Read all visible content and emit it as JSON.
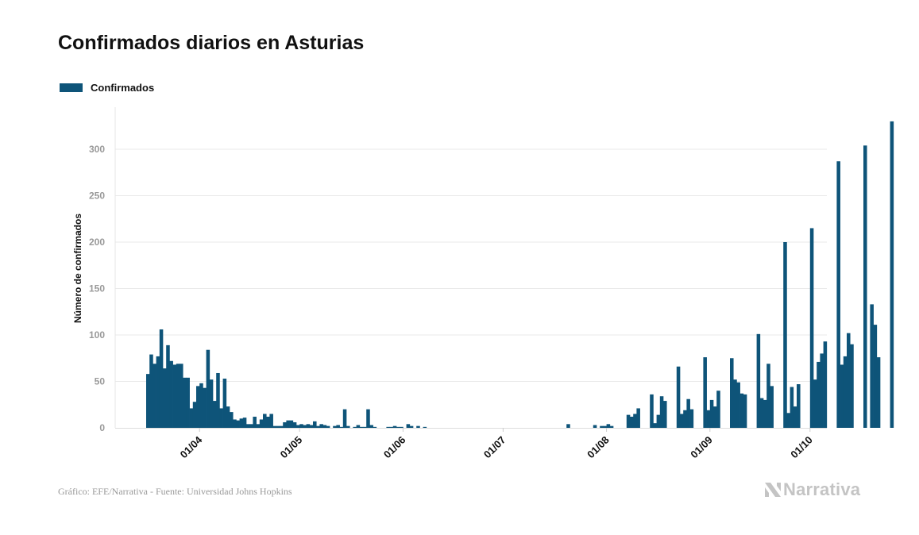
{
  "title": "Confirmados diarios en Asturias",
  "legend": {
    "label": "Confirmados",
    "color": "#0e5479"
  },
  "footer": {
    "source": "Gráfico: EFE/Narrativa - Fuente: Universidad Johns Hopkins"
  },
  "brand": {
    "name": "Narrativa",
    "icon": "narrativa-logo-icon"
  },
  "chart_data": {
    "type": "bar",
    "title": "Confirmados diarios en Asturias",
    "xlabel": "",
    "ylabel": "Número de confirmados",
    "ylim": [
      0,
      345
    ],
    "yticks": [
      0,
      50,
      100,
      150,
      200,
      250,
      300
    ],
    "grid": true,
    "legend_position": "top-left",
    "color": "#0e5479",
    "start_date": "2020-03-16",
    "xtick_labels": [
      "01/04",
      "01/05",
      "01/06",
      "01/07",
      "01/08",
      "01/09",
      "01/10"
    ],
    "xtick_day_index": [
      16,
      46,
      77,
      107,
      138,
      169,
      199
    ],
    "series": [
      {
        "name": "Confirmados",
        "values": [
          58,
          79,
          69,
          77,
          106,
          64,
          89,
          72,
          68,
          69,
          69,
          54,
          54,
          21,
          28,
          45,
          48,
          43,
          84,
          52,
          29,
          59,
          21,
          53,
          23,
          17,
          9,
          8,
          10,
          11,
          4,
          4,
          12,
          4,
          9,
          15,
          12,
          15,
          2,
          2,
          2,
          6,
          8,
          8,
          6,
          3,
          4,
          3,
          4,
          3,
          7,
          2,
          4,
          3,
          2,
          0,
          2,
          3,
          1,
          20,
          2,
          0,
          1,
          3,
          1,
          1,
          20,
          3,
          1,
          0,
          0,
          0,
          1,
          1,
          2,
          1,
          1,
          0,
          4,
          2,
          0,
          2,
          0,
          1,
          0,
          0,
          0,
          0,
          0,
          0,
          0,
          0,
          0,
          0,
          0,
          0,
          0,
          0,
          0,
          0,
          0,
          0,
          0,
          0,
          0,
          0,
          0,
          0,
          0,
          0,
          0,
          0,
          0,
          0,
          0,
          0,
          0,
          0,
          0,
          0,
          0,
          0,
          0,
          0,
          0,
          0,
          4,
          0,
          0,
          0,
          0,
          0,
          0,
          0,
          3,
          0,
          2,
          2,
          4,
          2,
          0,
          0,
          0,
          0,
          14,
          12,
          15,
          21,
          0,
          0,
          0,
          36,
          5,
          14,
          34,
          29,
          0,
          0,
          0,
          66,
          15,
          19,
          31,
          20,
          0,
          0,
          0,
          76,
          19,
          30,
          23,
          40,
          0,
          0,
          0,
          75,
          52,
          49,
          37,
          36,
          0,
          0,
          0,
          101,
          32,
          30,
          69,
          45,
          0,
          0,
          0,
          200,
          16,
          44,
          23,
          47,
          0,
          0,
          0,
          215,
          52,
          71,
          80,
          93,
          0,
          0,
          0,
          287,
          68,
          77,
          102,
          90,
          0,
          0,
          0,
          304,
          0,
          133,
          111,
          76,
          0,
          0,
          0,
          330
        ]
      }
    ]
  }
}
